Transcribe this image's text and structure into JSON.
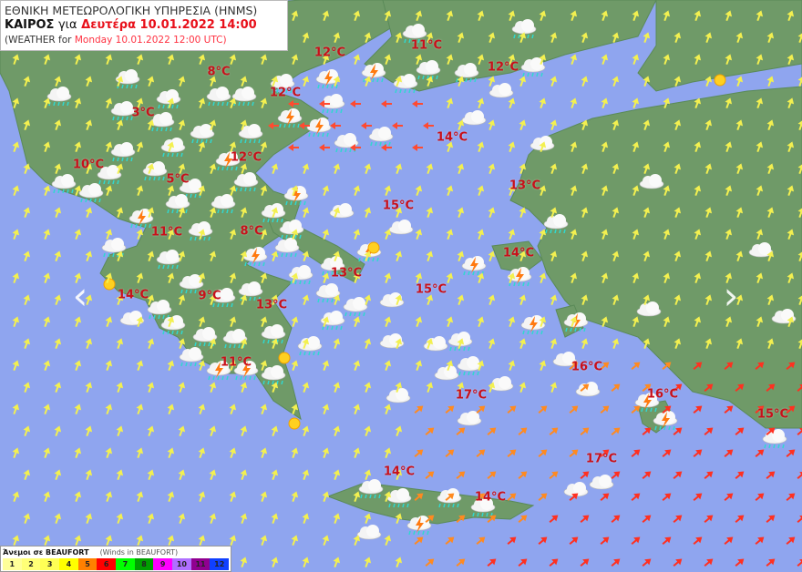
{
  "header": {
    "agency": "ΕΘΝΙΚΗ ΜΕΤΕΩΡΟΛΟΓΙΚΗ ΥΠΗΡΕΣΙΑ (HNMS)",
    "title_prefix": "ΚΑΙΡΟΣ",
    "title_gia": "για",
    "title_date": "Δευτέρα 10.01.2022 14:00",
    "subtitle_prefix": "(WEATHER for",
    "subtitle_date": "Monday 10.01.2022 12:00 UTC)"
  },
  "temperatures": [
    "11°C",
    "12°C",
    "12°C",
    "8°C",
    "12°C",
    "3°C",
    "14°C",
    "10°C",
    "12°C",
    "5°C",
    "13°C",
    "15°C",
    "11°C",
    "8°C",
    "14°C",
    "13°C",
    "15°C",
    "14°C",
    "9°C",
    "13°C",
    "11°C",
    "16°C",
    "17°C",
    "16°C",
    "15°C",
    "17°C",
    "14°C",
    "14°C"
  ],
  "navigation": {
    "prev_icon": "chevron-left-icon",
    "next_icon": "chevron-right-icon"
  },
  "legend": {
    "title": "Άνεμοι σε BEAUFORT",
    "subtitle": "(Winds in BEAUFORT)",
    "scale": [
      {
        "label": "1",
        "color": "#ffff99"
      },
      {
        "label": "2",
        "color": "#ffff77"
      },
      {
        "label": "3",
        "color": "#ffff55"
      },
      {
        "label": "4",
        "color": "#ffff00"
      },
      {
        "label": "5",
        "color": "#ff8000"
      },
      {
        "label": "6",
        "color": "#ff0000"
      },
      {
        "label": "7",
        "color": "#00ff00"
      },
      {
        "label": "8",
        "color": "#00a000"
      },
      {
        "label": "9",
        "color": "#ff00ff"
      },
      {
        "label": "10",
        "color": "#b070ff"
      },
      {
        "label": "11",
        "color": "#900090"
      },
      {
        "label": "12",
        "color": "#1040ff"
      }
    ]
  },
  "colors": {
    "sea": "#8fa5ef",
    "land": "#6f9a68",
    "temperature_text": "#c8101a"
  }
}
